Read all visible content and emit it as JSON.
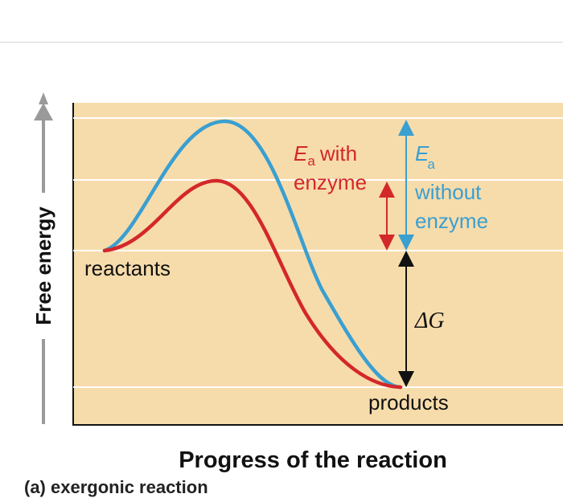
{
  "diagram": {
    "y_axis_label": "Free energy",
    "x_axis_label": "Progress of the reaction",
    "labels": {
      "reactants": "reactants",
      "products": "products",
      "ea_with_symbol": "E",
      "ea_subscript": "a",
      "ea_with_text_1": "with",
      "ea_with_text_2": "enzyme",
      "ea_without_symbol": "E",
      "ea_without_subscript": "a",
      "ea_without_text_1": "without",
      "ea_without_text_2": "enzyme",
      "delta_g": "ΔG"
    },
    "caption_fragment": "(a) exergonic reaction"
  },
  "colors": {
    "panel": "#f7dcab",
    "gridline": "#ffffff",
    "with_enzyme": "#d3282a",
    "without_enzyme": "#3a9fd1",
    "delta_g_arrow": "#111111",
    "axis_arrow": "#9a9a9a"
  }
}
